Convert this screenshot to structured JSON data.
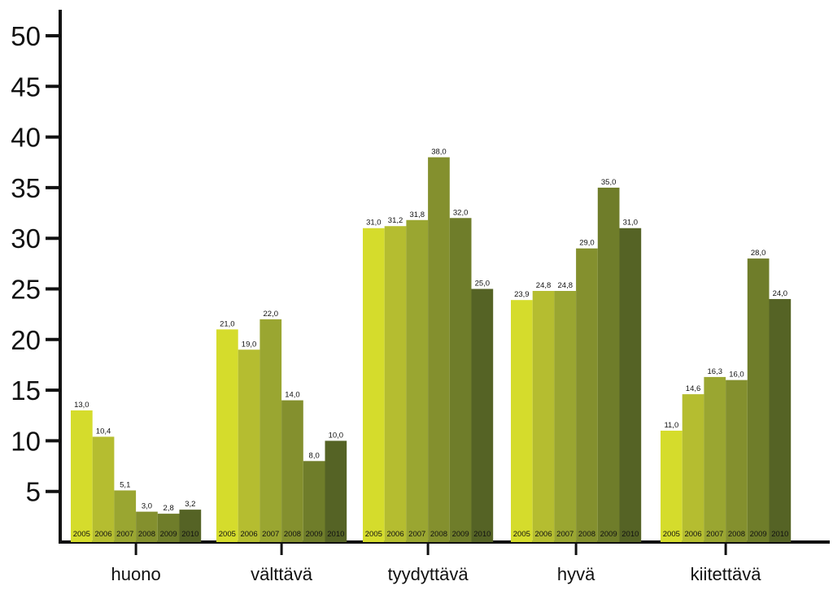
{
  "chart_data": {
    "type": "bar",
    "categories": [
      "huono",
      "välttävä",
      "tyydyttävä",
      "hyvä",
      "kiitettävä"
    ],
    "series": [
      {
        "name": "2005",
        "color": "#d5dc2c",
        "values": [
          13.0,
          21.0,
          31.0,
          23.9,
          11.0
        ],
        "labels": [
          "13,0",
          "21,0",
          "31,0",
          "23,9",
          "11,0"
        ]
      },
      {
        "name": "2006",
        "color": "#b5bd30",
        "values": [
          10.4,
          19.0,
          31.2,
          24.8,
          14.6
        ],
        "labels": [
          "10,4",
          "19,0",
          "31,2",
          "24,8",
          "14,6"
        ]
      },
      {
        "name": "2007",
        "color": "#9aa631",
        "values": [
          5.1,
          22.0,
          31.8,
          24.8,
          16.3
        ],
        "labels": [
          "5,1",
          "22,0",
          "31,8",
          "24,8",
          "16,3"
        ]
      },
      {
        "name": "2008",
        "color": "#84902e",
        "values": [
          3.0,
          14.0,
          38.0,
          29.0,
          16.0
        ],
        "labels": [
          "3,0",
          "14,0",
          "38,0",
          "29,0",
          "16,0"
        ]
      },
      {
        "name": "2009",
        "color": "#6f7d2a",
        "values": [
          2.8,
          8.0,
          32.0,
          35.0,
          28.0
        ],
        "labels": [
          "2,8",
          "8,0",
          "32,0",
          "35,0",
          "28,0"
        ]
      },
      {
        "name": "2010",
        "color": "#556325",
        "values": [
          3.2,
          10.0,
          25.0,
          31.0,
          24.0
        ],
        "labels": [
          "3,2",
          "10,0",
          "25,0",
          "31,0",
          "24,0"
        ]
      }
    ],
    "y_ticks": [
      "5",
      "10",
      "15",
      "20",
      "25",
      "30",
      "35",
      "40",
      "45",
      "50"
    ],
    "ylim": [
      0,
      50
    ],
    "title": "",
    "xlabel": "",
    "ylabel": "",
    "grid": false,
    "legend": "none"
  }
}
